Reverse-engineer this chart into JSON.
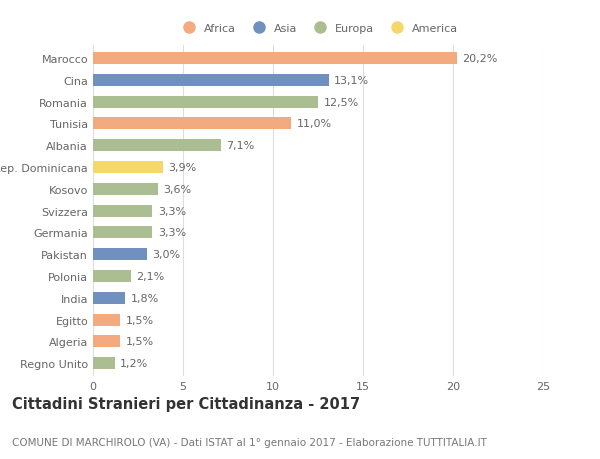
{
  "countries": [
    "Marocco",
    "Cina",
    "Romania",
    "Tunisia",
    "Albania",
    "Rep. Dominicana",
    "Kosovo",
    "Svizzera",
    "Germania",
    "Pakistan",
    "Polonia",
    "India",
    "Egitto",
    "Algeria",
    "Regno Unito"
  ],
  "values": [
    20.2,
    13.1,
    12.5,
    11.0,
    7.1,
    3.9,
    3.6,
    3.3,
    3.3,
    3.0,
    2.1,
    1.8,
    1.5,
    1.5,
    1.2
  ],
  "labels": [
    "20,2%",
    "13,1%",
    "12,5%",
    "11,0%",
    "7,1%",
    "3,9%",
    "3,6%",
    "3,3%",
    "3,3%",
    "3,0%",
    "2,1%",
    "1,8%",
    "1,5%",
    "1,5%",
    "1,2%"
  ],
  "continents": [
    "Africa",
    "Asia",
    "Europa",
    "Africa",
    "Europa",
    "America",
    "Europa",
    "Europa",
    "Europa",
    "Asia",
    "Europa",
    "Asia",
    "Africa",
    "Africa",
    "Europa"
  ],
  "continent_colors": {
    "Africa": "#F2AA7E",
    "Asia": "#7090C0",
    "Europa": "#ABBE92",
    "America": "#F5D76A"
  },
  "legend_order": [
    "Africa",
    "Asia",
    "Europa",
    "America"
  ],
  "title": "Cittadini Stranieri per Cittadinanza - 2017",
  "subtitle": "COMUNE DI MARCHIROLO (VA) - Dati ISTAT al 1° gennaio 2017 - Elaborazione TUTTITALIA.IT",
  "xlim": [
    0,
    25
  ],
  "xticks": [
    0,
    5,
    10,
    15,
    20,
    25
  ],
  "bg_color": "#ffffff",
  "grid_color": "#dddddd",
  "bar_height": 0.55,
  "label_fontsize": 8.0,
  "tick_fontsize": 8.0,
  "title_fontsize": 10.5,
  "subtitle_fontsize": 7.5
}
